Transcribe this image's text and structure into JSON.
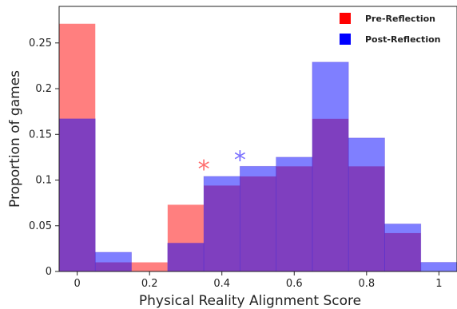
{
  "chart_data": {
    "type": "bar",
    "title": "",
    "xlabel": "Physical Reality Alignment Score",
    "ylabel": "Proportion of games",
    "xlim": [
      -0.05,
      1.05
    ],
    "ylim": [
      0,
      0.29
    ],
    "xticks": [
      0,
      0.2,
      0.4,
      0.6,
      0.8,
      1
    ],
    "xtick_labels": [
      "0",
      "0.2",
      "0.4",
      "0.6",
      "0.8",
      "1"
    ],
    "yticks": [
      0,
      0.05,
      0.1,
      0.15,
      0.2,
      0.25
    ],
    "ytick_labels": [
      "0",
      "0.05",
      "0.1",
      "0.15",
      "0.2",
      "0.25"
    ],
    "bin_width": 0.1,
    "bin_centers": [
      0,
      0.1,
      0.2,
      0.3,
      0.4,
      0.5,
      0.6,
      0.7,
      0.8,
      0.9,
      1.0
    ],
    "series": [
      {
        "name": "Pre-Reflection",
        "color": "#ff0000",
        "values": [
          0.271,
          0.01,
          0.01,
          0.073,
          0.094,
          0.104,
          0.115,
          0.167,
          0.115,
          0.042,
          0.0
        ]
      },
      {
        "name": "Post-Reflection",
        "color": "#0000ff",
        "values": [
          0.167,
          0.021,
          0.0,
          0.031,
          0.104,
          0.115,
          0.125,
          0.229,
          0.146,
          0.052,
          0.01
        ]
      }
    ],
    "legend_position": "top-right",
    "annotations": [
      {
        "text": "*",
        "x": 0.35,
        "y": 0.118,
        "color": "#ff6f6f"
      },
      {
        "text": "*",
        "x": 0.45,
        "y": 0.128,
        "color": "#7a70ff"
      }
    ],
    "grid": false
  }
}
